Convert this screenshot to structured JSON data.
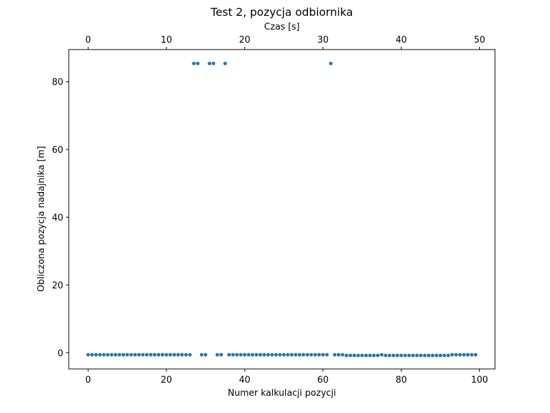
{
  "chart_data": {
    "type": "scatter",
    "title": "Test 2, pozycja odbiornika",
    "xlabel": "Numer kalkulacji pozycji",
    "ylabel": "Obliczona pozycja nadajnika [m]",
    "top_xlabel": "Czas [s]",
    "xlim": [
      -4.95,
      103.95
    ],
    "ylim": [
      -4.8,
      89.5
    ],
    "x_ticks": [
      0,
      20,
      40,
      60,
      80,
      100
    ],
    "y_ticks": [
      0,
      20,
      40,
      60,
      80
    ],
    "top_x_ticks": [
      0,
      10,
      20,
      30,
      40,
      50
    ],
    "top_x_scale": 2,
    "grid": false,
    "marker_color": "#1f77b4",
    "series": [
      {
        "x": [
          0,
          1,
          2,
          3,
          4,
          5,
          6,
          7,
          8,
          9,
          10,
          11,
          12,
          13,
          14,
          15,
          16,
          17,
          18,
          19,
          20,
          21,
          22,
          23,
          24,
          25,
          26,
          27,
          28,
          29,
          30,
          31,
          32,
          33,
          34,
          35,
          36,
          37,
          38,
          39,
          40,
          41,
          42,
          43,
          44,
          45,
          46,
          47,
          48,
          49,
          50,
          51,
          52,
          53,
          54,
          55,
          56,
          57,
          58,
          59,
          60,
          61,
          62,
          63,
          64,
          65,
          66,
          67,
          68,
          69,
          70,
          71,
          72,
          73,
          74,
          75,
          76,
          77,
          78,
          79,
          80,
          81,
          82,
          83,
          84,
          85,
          86,
          87,
          88,
          89,
          90,
          91,
          92,
          93,
          94,
          95,
          96,
          97,
          98,
          99
        ],
        "y": [
          -0.6,
          -0.6,
          -0.6,
          -0.6,
          -0.6,
          -0.6,
          -0.6,
          -0.6,
          -0.6,
          -0.6,
          -0.6,
          -0.6,
          -0.6,
          -0.6,
          -0.6,
          -0.6,
          -0.6,
          -0.6,
          -0.6,
          -0.6,
          -0.6,
          -0.6,
          -0.6,
          -0.6,
          -0.6,
          -0.6,
          -0.6,
          85.4,
          85.4,
          -0.6,
          -0.6,
          85.4,
          85.4,
          -0.6,
          -0.6,
          85.4,
          -0.6,
          -0.6,
          -0.6,
          -0.6,
          -0.6,
          -0.6,
          -0.6,
          -0.6,
          -0.6,
          -0.6,
          -0.6,
          -0.6,
          -0.6,
          -0.6,
          -0.6,
          -0.6,
          -0.6,
          -0.6,
          -0.6,
          -0.6,
          -0.6,
          -0.6,
          -0.6,
          -0.6,
          -0.6,
          -0.6,
          85.4,
          -0.6,
          -0.6,
          -0.6,
          -0.8,
          -0.8,
          -0.8,
          -0.8,
          -0.8,
          -0.8,
          -0.8,
          -0.8,
          -0.8,
          -0.6,
          -0.8,
          -0.8,
          -0.8,
          -0.8,
          -0.8,
          -0.8,
          -0.8,
          -0.8,
          -0.8,
          -0.8,
          -0.8,
          -0.8,
          -0.8,
          -0.8,
          -0.8,
          -0.8,
          -0.8,
          -0.6,
          -0.6,
          -0.6,
          -0.6,
          -0.6,
          -0.6,
          -0.6
        ]
      }
    ]
  }
}
